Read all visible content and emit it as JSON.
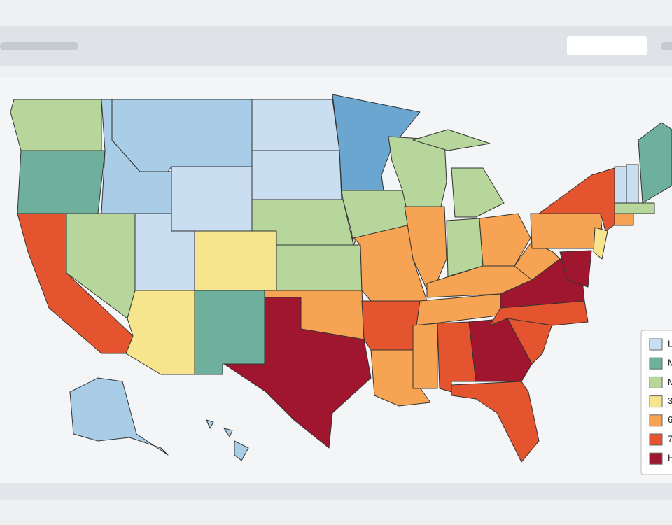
{
  "legend": {
    "items": [
      {
        "label": "L",
        "color": "#c9def0"
      },
      {
        "label": "M",
        "color": "#6fb09c"
      },
      {
        "label": "M",
        "color": "#b6d69c"
      },
      {
        "label": "3",
        "color": "#f7e58e"
      },
      {
        "label": "6",
        "color": "#f6a353"
      },
      {
        "label": "7",
        "color": "#e4552f"
      },
      {
        "label": "H",
        "color": "#a1162f"
      }
    ]
  }
}
